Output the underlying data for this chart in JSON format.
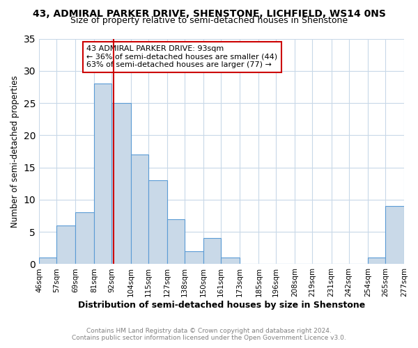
{
  "title_line1": "43, ADMIRAL PARKER DRIVE, SHENSTONE, LICHFIELD, WS14 0NS",
  "title_line2": "Size of property relative to semi-detached houses in Shenstone",
  "xlabel": "Distribution of semi-detached houses by size in Shenstone",
  "ylabel": "Number of semi-detached properties",
  "footer_line1": "Contains HM Land Registry data © Crown copyright and database right 2024.",
  "footer_line2": "Contains public sector information licensed under the Open Government Licence v3.0.",
  "annotation_line1": "43 ADMIRAL PARKER DRIVE: 93sqm",
  "annotation_line2": "← 36% of semi-detached houses are smaller (44)",
  "annotation_line3": "63% of semi-detached houses are larger (77) →",
  "property_size": 93,
  "bin_edges": [
    46,
    57,
    69,
    81,
    92,
    104,
    115,
    127,
    138,
    150,
    161,
    173,
    185,
    196,
    208,
    219,
    231,
    242,
    254,
    265,
    277
  ],
  "bin_labels": [
    "46sqm",
    "57sqm",
    "69sqm",
    "81sqm",
    "92sqm",
    "104sqm",
    "115sqm",
    "127sqm",
    "138sqm",
    "150sqm",
    "161sqm",
    "173sqm",
    "185sqm",
    "196sqm",
    "208sqm",
    "219sqm",
    "231sqm",
    "242sqm",
    "254sqm",
    "265sqm",
    "277sqm"
  ],
  "counts": [
    1,
    6,
    8,
    28,
    25,
    17,
    13,
    7,
    2,
    4,
    1,
    0,
    0,
    0,
    0,
    0,
    0,
    0,
    1,
    9
  ],
  "bar_color": "#c9d9e8",
  "bar_edge_color": "#5b9bd5",
  "vline_color": "#cc0000",
  "vline_x": 93,
  "annotation_box_color": "#ffffff",
  "annotation_box_edge": "#cc0000",
  "ylim": [
    0,
    35
  ],
  "yticks": [
    0,
    5,
    10,
    15,
    20,
    25,
    30,
    35
  ],
  "background_color": "#ffffff",
  "grid_color": "#c8d8e8"
}
